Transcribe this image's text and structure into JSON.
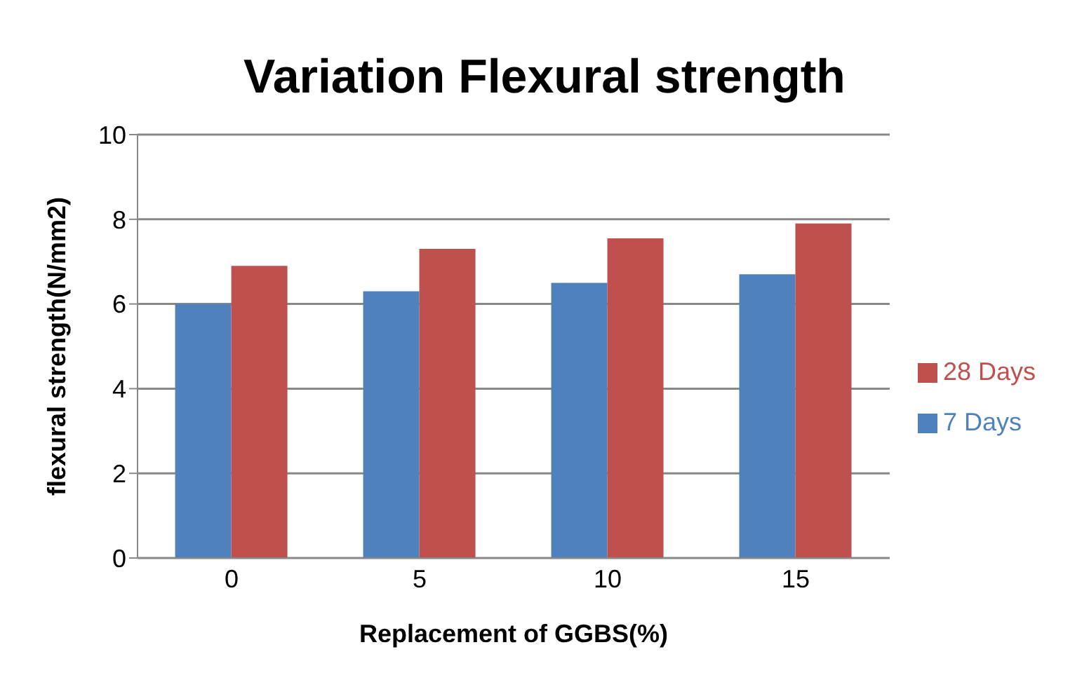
{
  "chart_data": {
    "type": "bar",
    "title": "Variation Flexural strength",
    "xlabel": "Replacement of GGBS(%)",
    "ylabel": "flexural strength(N/mm2)",
    "categories": [
      "0",
      "5",
      "10",
      "15"
    ],
    "series": [
      {
        "name": "7 Days",
        "color": "#4f81bd",
        "values": [
          6.0,
          6.3,
          6.5,
          6.7
        ]
      },
      {
        "name": "28 Days",
        "color": "#c0504d",
        "values": [
          6.9,
          7.3,
          7.55,
          7.9
        ]
      }
    ],
    "ylim": [
      0,
      10
    ],
    "yticks": [
      0,
      2,
      4,
      6,
      8,
      10
    ],
    "grid": "y",
    "legend": "right"
  }
}
